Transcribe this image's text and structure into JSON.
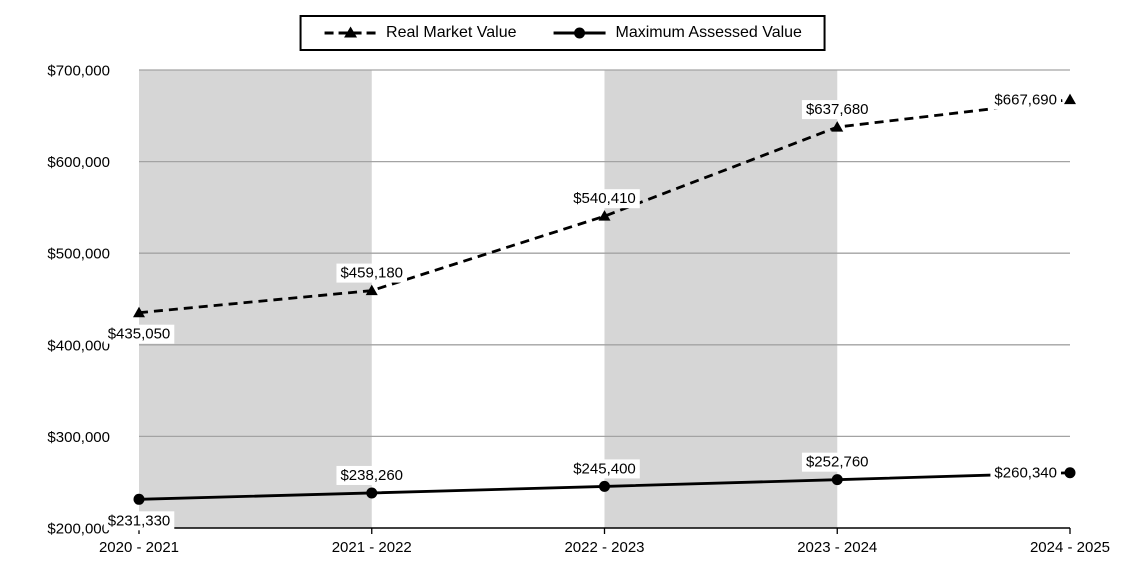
{
  "chart_data": {
    "type": "line",
    "categories": [
      "2020 - 2021",
      "2021 - 2022",
      "2022 - 2023",
      "2023 - 2024",
      "2024 - 2025"
    ],
    "series": [
      {
        "name": "Real Market Value",
        "values": [
          435050,
          459180,
          540410,
          637680,
          667690
        ],
        "labels": [
          "$435,050",
          "$459,180",
          "$540,410",
          "$637,680",
          "$667,690"
        ],
        "line_style": "dashed",
        "marker": "triangle",
        "color": "#000000"
      },
      {
        "name": "Maximum Assessed Value",
        "values": [
          231330,
          238260,
          245400,
          252760,
          260340
        ],
        "labels": [
          "$231,330",
          "$238,260",
          "$245,400",
          "$252,760",
          "$260,340"
        ],
        "line_style": "solid",
        "marker": "circle",
        "color": "#000000"
      }
    ],
    "title": "",
    "xlabel": "",
    "ylabel": "",
    "ylim": [
      200000,
      700000
    ],
    "ytick_values": [
      200000,
      300000,
      400000,
      500000,
      600000,
      700000
    ],
    "ytick_labels": [
      "$200,000",
      "$300,000",
      "$400,000",
      "$500,000",
      "$600,000",
      "$700,000"
    ],
    "grid": true,
    "legend_position": "top-center",
    "shaded_band_pairs": [
      [
        0,
        1
      ],
      [
        2,
        3
      ]
    ],
    "band_color": "#d6d6d6",
    "gridline_color": "#a3a3a3",
    "axis_color": "#000000",
    "label_box_color": "#ffffff",
    "text_color": "#000000"
  }
}
